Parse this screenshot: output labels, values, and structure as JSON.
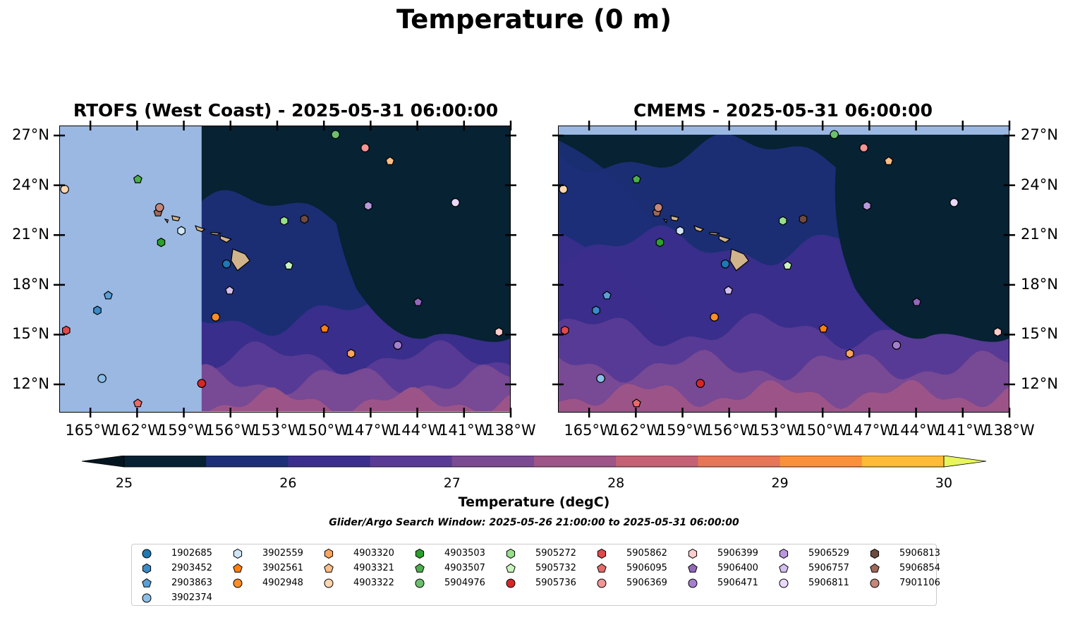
{
  "title": "Temperature (0 m)",
  "panels": [
    {
      "id": "left",
      "title": "RTOFS (West Coast) - 2025-05-31 06:00:00"
    },
    {
      "id": "right",
      "title": "CMEMS - 2025-05-31 06:00:00"
    }
  ],
  "map_extent": {
    "lon_min": -167,
    "lon_max": -138,
    "lat_min": 10.3,
    "lat_max": 27.6
  },
  "lat_ticks": [
    "27°N",
    "24°N",
    "21°N",
    "18°N",
    "15°N",
    "12°N"
  ],
  "lon_ticks": [
    "165°W",
    "162°W",
    "159°W",
    "156°W",
    "153°W",
    "150°W",
    "147°W",
    "144°W",
    "141°W",
    "138°W"
  ],
  "colorbar": {
    "label": "Temperature (degC)",
    "ticks": [
      "25",
      "26",
      "27",
      "28",
      "29",
      "30"
    ],
    "colors": [
      "#062233",
      "#1c2f78",
      "#3b2e8c",
      "#593b96",
      "#7a4a93",
      "#9e5587",
      "#c46174",
      "#e77557",
      "#fa913a",
      "#fdbb37"
    ],
    "under_color": "#031520",
    "over_color": "#e8f55c"
  },
  "search_window": "Glider/Argo Search Window: 2025-05-26 21:00:00 to 2025-05-31 06:00:00",
  "colors": {
    "land": "#d2b48c",
    "no_data": "#9ab8e2",
    "deep": "#062233"
  },
  "floats": [
    {
      "id": "1902685",
      "marker": "circle",
      "color": "#1f77b4",
      "lon": -156.3,
      "lat": 19.3
    },
    {
      "id": "2903452",
      "marker": "hexagon",
      "color": "#3b8bc8",
      "lon": -164.6,
      "lat": 16.5
    },
    {
      "id": "2903863",
      "marker": "pentagon",
      "color": "#5aa0d6",
      "lon": -163.9,
      "lat": 17.4
    },
    {
      "id": "3902374",
      "marker": "circle",
      "color": "#8cbfe6",
      "lon": -164.3,
      "lat": 12.4
    },
    {
      "id": "3902559",
      "marker": "hexagon",
      "color": "#d0e6f7",
      "lon": -159.2,
      "lat": 21.3
    },
    {
      "id": "3902561",
      "marker": "pentagon",
      "color": "#ff7f0e",
      "lon": -150.0,
      "lat": 15.4
    },
    {
      "id": "4902948",
      "marker": "circle",
      "color": "#ff8c26",
      "lon": -157.0,
      "lat": 16.1
    },
    {
      "id": "4903320",
      "marker": "hexagon",
      "color": "#ffa55a",
      "lon": -148.3,
      "lat": 13.9
    },
    {
      "id": "4903321",
      "marker": "pentagon",
      "color": "#ffbe86",
      "lon": -145.8,
      "lat": 25.5
    },
    {
      "id": "4903322",
      "marker": "circle",
      "color": "#ffd6b0",
      "lon": -166.7,
      "lat": 23.8
    },
    {
      "id": "4903503",
      "marker": "hexagon",
      "color": "#2ca02c",
      "lon": -160.5,
      "lat": 20.6
    },
    {
      "id": "4903507",
      "marker": "pentagon",
      "color": "#4caf4c",
      "lon": -162.0,
      "lat": 24.4
    },
    {
      "id": "5904976",
      "marker": "circle",
      "color": "#6cc06c",
      "lon": -149.3,
      "lat": 27.1
    },
    {
      "id": "5905272",
      "marker": "hexagon",
      "color": "#98df8a",
      "lon": -152.6,
      "lat": 21.9
    },
    {
      "id": "5905732",
      "marker": "pentagon",
      "color": "#c8f5bd",
      "lon": -152.3,
      "lat": 19.2
    },
    {
      "id": "5905736",
      "marker": "circle",
      "color": "#d62728",
      "lon": -157.9,
      "lat": 12.1
    },
    {
      "id": "5905862",
      "marker": "hexagon",
      "color": "#e04a4a",
      "lon": -166.6,
      "lat": 15.3
    },
    {
      "id": "5906095",
      "marker": "pentagon",
      "color": "#e86a6a",
      "lon": -162.0,
      "lat": 10.9
    },
    {
      "id": "5906369",
      "marker": "circle",
      "color": "#f39595",
      "lon": -147.4,
      "lat": 26.3
    },
    {
      "id": "5906399",
      "marker": "hexagon",
      "color": "#ffcccc",
      "lon": -138.8,
      "lat": 15.2
    },
    {
      "id": "5906400",
      "marker": "pentagon",
      "color": "#9467bd",
      "lon": -144.0,
      "lat": 17.0
    },
    {
      "id": "5906471",
      "marker": "circle",
      "color": "#a57fcf",
      "lon": -145.3,
      "lat": 14.4
    },
    {
      "id": "5906529",
      "marker": "hexagon",
      "color": "#b899db",
      "lon": -147.2,
      "lat": 22.8
    },
    {
      "id": "5906757",
      "marker": "pentagon",
      "color": "#d5bfee",
      "lon": -156.1,
      "lat": 17.7
    },
    {
      "id": "5906811",
      "marker": "circle",
      "color": "#e9d8fb",
      "lon": -141.6,
      "lat": 23.0
    },
    {
      "id": "5906813",
      "marker": "hexagon",
      "color": "#6f4a3f",
      "lon": -151.3,
      "lat": 22.0
    },
    {
      "id": "5906854",
      "marker": "pentagon",
      "color": "#a0685a",
      "lon": -160.7,
      "lat": 22.4
    },
    {
      "id": "7901106",
      "marker": "circle",
      "color": "#c4877a",
      "lon": -160.6,
      "lat": 22.7
    }
  ]
}
